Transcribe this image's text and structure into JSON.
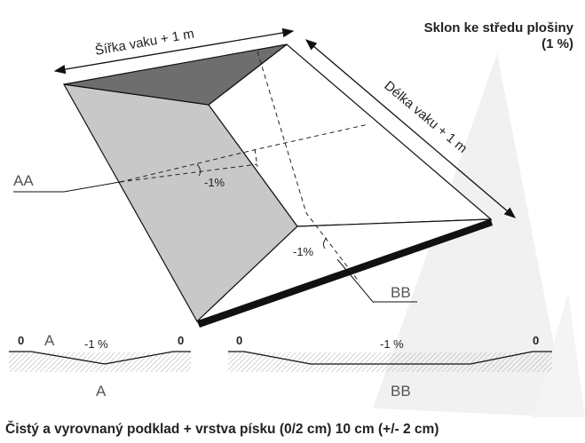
{
  "title": {
    "line1": "Sklon ke středu plošiny",
    "line2": "(1 %)"
  },
  "dimensions": {
    "width": "Šířka vaku + 1 m",
    "length": "Délka vaku + 1 m"
  },
  "sections": {
    "aa": {
      "label": "AA",
      "slope": "-1%"
    },
    "bb": {
      "label": "BB",
      "slope": "-1%"
    }
  },
  "profiles": [
    {
      "left": "0",
      "marker": "A",
      "slope": "-1 %",
      "right": "0",
      "name": "A"
    },
    {
      "left": "0",
      "slope": "-1 %",
      "right": "0",
      "name": "BB"
    }
  ],
  "footer": "Čistý a vyrovnaný podklad + vrstva písku (0/2 cm) 10 cm (+/- 2 cm)"
}
